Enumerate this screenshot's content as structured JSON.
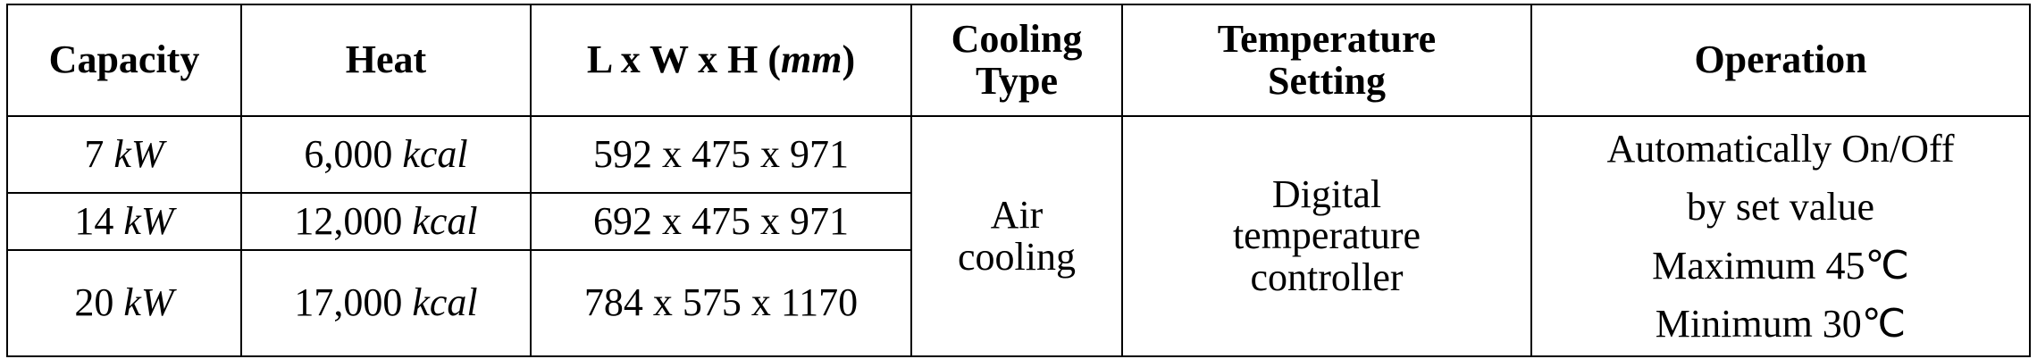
{
  "table": {
    "header": [
      [
        "Capacity"
      ],
      [
        "Heat"
      ],
      [
        "L x W x H (",
        "mm",
        ")"
      ],
      [
        "Cooling",
        "Type"
      ],
      [
        "Temperature",
        "Setting"
      ],
      [
        "Operation"
      ]
    ],
    "rows": [
      {
        "capacity": [
          "7",
          "kW"
        ],
        "heat": [
          "6,000",
          "kcal"
        ],
        "size": "592 x 475 x 971"
      },
      {
        "capacity": [
          "14",
          "kW"
        ],
        "heat": [
          "12,000",
          "kcal"
        ],
        "size": "692 x 475 x 971"
      },
      {
        "capacity": [
          "20",
          "kW"
        ],
        "heat": [
          "17,000",
          "kcal"
        ],
        "size": "784 x 575 x 1170"
      }
    ],
    "cooling": [
      "Air",
      "cooling"
    ],
    "temperature": [
      "Digital",
      "temperature",
      "controller"
    ],
    "operation": [
      "Automatically On/Off",
      "by set value",
      "Maximum 45℃",
      "Minimum 30℃"
    ]
  }
}
